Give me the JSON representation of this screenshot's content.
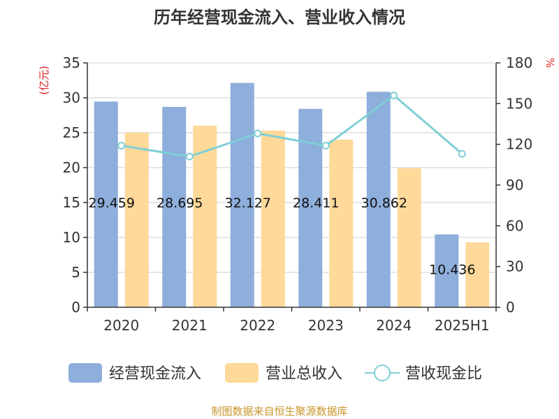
{
  "chart_data": {
    "type": "bar",
    "title": "历年经营现金流入、营业收入情况",
    "categories": [
      "2020",
      "2021",
      "2022",
      "2023",
      "2024",
      "2025H1"
    ],
    "series": [
      {
        "name": "经营现金流入",
        "type": "bar",
        "axis": "left",
        "color": "#8eaedb",
        "values": [
          29.459,
          28.695,
          32.127,
          28.411,
          30.862,
          10.436
        ],
        "labels": [
          "29.459",
          "28.695",
          "32.127",
          "28.411",
          "30.862",
          "10.436"
        ]
      },
      {
        "name": "营业总收入",
        "type": "bar",
        "axis": "left",
        "color": "#fed999",
        "values": [
          25.0,
          26.0,
          25.3,
          24.0,
          19.9,
          9.3
        ]
      },
      {
        "name": "营收现金比",
        "type": "line",
        "axis": "right",
        "color": "#7fcfd6",
        "values": [
          119,
          111,
          128,
          119,
          156,
          113
        ]
      }
    ],
    "y_left": {
      "min": 0,
      "max": 35,
      "ticks": [
        0,
        5,
        10,
        15,
        20,
        25,
        30,
        35
      ],
      "unit": "(亿元)"
    },
    "y_right": {
      "min": 0,
      "max": 180,
      "ticks": [
        0,
        30,
        60,
        90,
        120,
        150,
        180
      ],
      "unit": "%"
    },
    "grid": true,
    "legend": "bottom",
    "source": "制图数据来自恒生聚源数据库"
  }
}
